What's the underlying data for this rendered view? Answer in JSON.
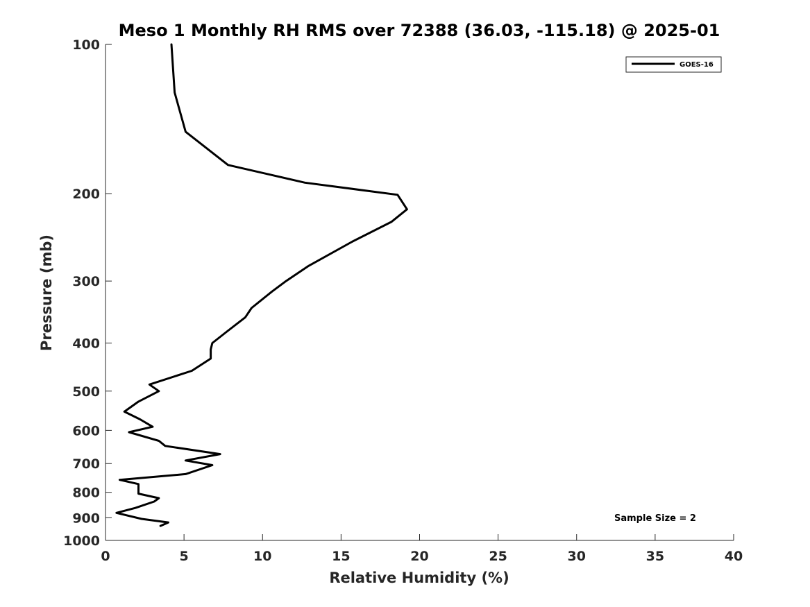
{
  "chart_data": {
    "type": "line",
    "title": "Meso 1 Monthly RH RMS over 72388 (36.03, -115.18) @ 2025-01",
    "xlabel": "Relative Humidity (%)",
    "ylabel": "Pressure (mb)",
    "xlim": [
      0,
      40
    ],
    "ylim": [
      1000,
      100
    ],
    "y_scale": "log",
    "y_reversed": true,
    "x_ticks": [
      "0",
      "5",
      "10",
      "15",
      "20",
      "25",
      "30",
      "35",
      "40"
    ],
    "y_ticks": [
      "100",
      "200",
      "300",
      "400",
      "500",
      "600",
      "700",
      "800",
      "900",
      "1000"
    ],
    "grid": false,
    "legend_position": "top-right",
    "annotation": "Sample Size = 2",
    "series": [
      {
        "name": "GOES-16",
        "color": "#000000",
        "points": [
          [
            4.2,
            100
          ],
          [
            4.4,
            125
          ],
          [
            5.1,
            150
          ],
          [
            7.8,
            175
          ],
          [
            12.7,
            190
          ],
          [
            18.6,
            201
          ],
          [
            19.2,
            215
          ],
          [
            18.2,
            228
          ],
          [
            15.7,
            250
          ],
          [
            12.9,
            280
          ],
          [
            11.5,
            300
          ],
          [
            10.6,
            315
          ],
          [
            9.3,
            340
          ],
          [
            8.9,
            355
          ],
          [
            7.7,
            380
          ],
          [
            6.8,
            400
          ],
          [
            6.7,
            412
          ],
          [
            6.7,
            430
          ],
          [
            5.5,
            455
          ],
          [
            2.8,
            485
          ],
          [
            3.4,
            500
          ],
          [
            2.1,
            525
          ],
          [
            1.2,
            550
          ],
          [
            2.2,
            570
          ],
          [
            3.0,
            590
          ],
          [
            1.5,
            605
          ],
          [
            3.4,
            630
          ],
          [
            3.8,
            645
          ],
          [
            7.3,
            670
          ],
          [
            5.1,
            690
          ],
          [
            6.8,
            705
          ],
          [
            5.1,
            735
          ],
          [
            0.9,
            755
          ],
          [
            2.1,
            770
          ],
          [
            2.1,
            780
          ],
          [
            2.1,
            805
          ],
          [
            3.4,
            822
          ],
          [
            3.1,
            835
          ],
          [
            1.9,
            860
          ],
          [
            0.7,
            880
          ],
          [
            2.3,
            905
          ],
          [
            4.0,
            920
          ],
          [
            3.5,
            935
          ]
        ]
      }
    ]
  }
}
